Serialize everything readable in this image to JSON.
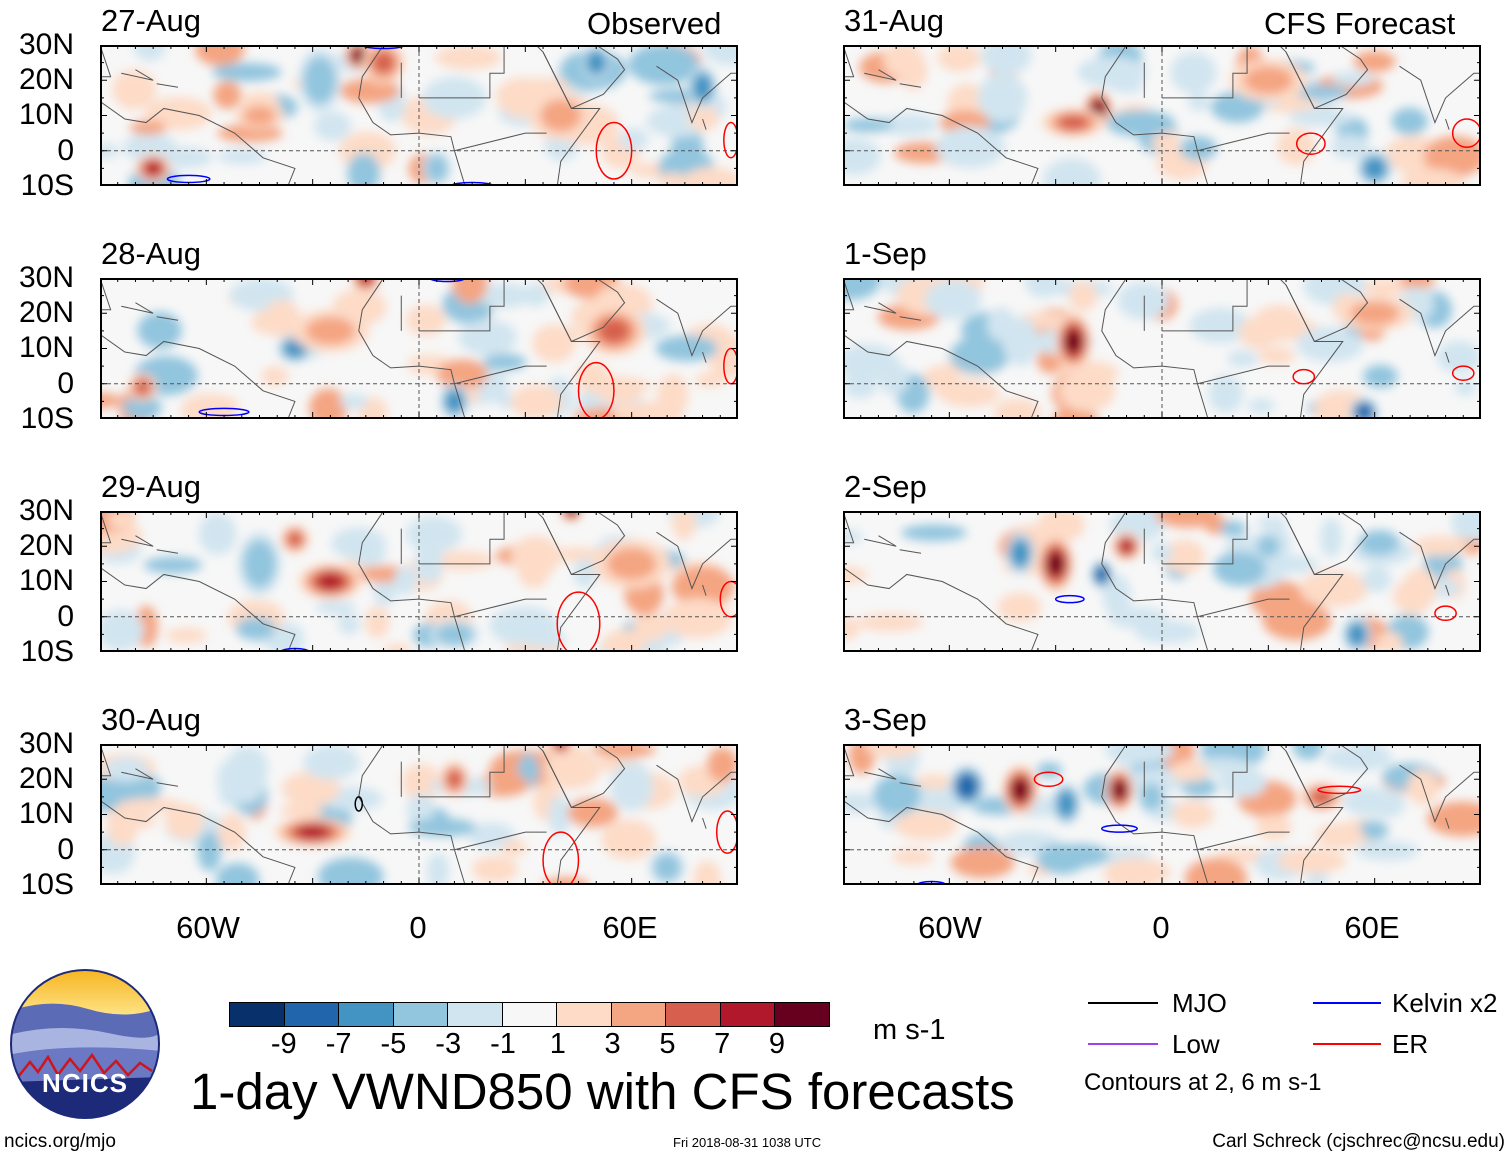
{
  "header": {
    "observed_label": "Observed",
    "forecast_label": "CFS Forecast"
  },
  "lat_labels": [
    "30N",
    "20N",
    "10N",
    "0",
    "10S"
  ],
  "lon_labels": [
    "60W",
    "0",
    "60E"
  ],
  "map_extent": {
    "lon": [
      -90,
      90
    ],
    "lat": [
      -10,
      30
    ]
  },
  "panels": [
    {
      "date": "27-Aug",
      "type": "observed",
      "features": [
        [
          -75,
          -5,
          7,
          4,
          3
        ],
        [
          -17,
          27,
          9,
          3,
          3
        ],
        [
          -10,
          25,
          5,
          5,
          5
        ],
        [
          -28,
          20,
          -5,
          5,
          8
        ],
        [
          10,
          15,
          -3,
          8,
          5
        ],
        [
          5,
          -5,
          -5,
          3,
          4
        ],
        [
          50,
          25,
          -7,
          3,
          4
        ],
        [
          80,
          18,
          -7,
          3,
          5
        ],
        [
          -45,
          10,
          3,
          6,
          3
        ],
        [
          40,
          10,
          3,
          8,
          6
        ]
      ],
      "contours": [
        [
          "ER",
          55,
          0,
          5,
          8
        ],
        [
          "ER",
          88,
          3,
          2,
          5
        ],
        [
          "Kelvin",
          -65,
          -8,
          6,
          1
        ],
        [
          "Kelvin",
          15,
          -10,
          6,
          1
        ],
        [
          "Kelvin",
          -10,
          30,
          6,
          1
        ]
      ]
    },
    {
      "date": "28-Aug",
      "type": "observed",
      "features": [
        [
          -35,
          10,
          -7,
          4,
          3
        ],
        [
          -15,
          30,
          7,
          3,
          3
        ],
        [
          10,
          -5,
          -7,
          3,
          4
        ],
        [
          55,
          15,
          5,
          8,
          6
        ],
        [
          -25,
          15,
          3,
          10,
          5
        ],
        [
          -78,
          -1,
          5,
          3,
          3
        ]
      ],
      "contours": [
        [
          "ER",
          50,
          -2,
          5,
          8
        ],
        [
          "ER",
          88,
          5,
          2,
          5
        ],
        [
          "Kelvin",
          -55,
          -8,
          7,
          1
        ],
        [
          "Kelvin",
          8,
          30,
          5,
          1
        ]
      ]
    },
    {
      "date": "29-Aug",
      "type": "observed",
      "features": [
        [
          -25,
          10,
          7,
          8,
          4
        ],
        [
          -45,
          15,
          -5,
          5,
          8
        ],
        [
          43,
          30,
          7,
          2,
          2
        ],
        [
          60,
          15,
          3,
          10,
          6
        ],
        [
          -35,
          22,
          5,
          3,
          3
        ],
        [
          10,
          -5,
          -5,
          6,
          3
        ]
      ],
      "contours": [
        [
          "ER",
          45,
          -2,
          6,
          9
        ],
        [
          "ER",
          88,
          5,
          3,
          5
        ],
        [
          "Kelvin",
          -35,
          -10,
          4,
          1
        ]
      ]
    },
    {
      "date": "30-Aug",
      "type": "observed",
      "features": [
        [
          -30,
          5,
          7,
          10,
          3
        ],
        [
          -50,
          20,
          -3,
          6,
          6
        ],
        [
          10,
          20,
          5,
          3,
          4
        ],
        [
          40,
          30,
          7,
          2,
          2
        ],
        [
          70,
          -5,
          -5,
          4,
          4
        ],
        [
          60,
          18,
          -3,
          5,
          6
        ]
      ],
      "contours": [
        [
          "ER",
          40,
          -3,
          5,
          8
        ],
        [
          "ER",
          87,
          5,
          3,
          6
        ],
        [
          "MJO",
          -17,
          13,
          1,
          2
        ]
      ]
    },
    {
      "date": "31-Aug",
      "type": "forecast",
      "features": [
        [
          -18,
          12,
          9,
          3,
          4
        ],
        [
          -25,
          8,
          5,
          8,
          3
        ],
        [
          60,
          -5,
          -7,
          4,
          4
        ],
        [
          -45,
          15,
          -3,
          6,
          6
        ],
        [
          30,
          20,
          3,
          10,
          5
        ]
      ],
      "contours": [
        [
          "ER",
          42,
          2,
          4,
          3
        ],
        [
          "ER",
          86,
          5,
          4,
          4
        ]
      ]
    },
    {
      "date": "1-Sep",
      "type": "forecast",
      "features": [
        [
          -25,
          12,
          9,
          4,
          7
        ],
        [
          -40,
          12,
          -3,
          4,
          6
        ],
        [
          57,
          -8,
          -9,
          3,
          3
        ],
        [
          60,
          20,
          3,
          10,
          4
        ]
      ],
      "contours": [
        [
          "ER",
          40,
          2,
          3,
          2
        ],
        [
          "ER",
          85,
          3,
          3,
          2
        ]
      ]
    },
    {
      "date": "2-Sep",
      "type": "forecast",
      "features": [
        [
          -30,
          15,
          9,
          4,
          7
        ],
        [
          -40,
          18,
          -7,
          3,
          5
        ],
        [
          -17,
          12,
          -9,
          2,
          3
        ],
        [
          -10,
          20,
          7,
          3,
          3
        ],
        [
          55,
          -5,
          -7,
          3,
          4
        ],
        [
          30,
          20,
          -5,
          3,
          3
        ]
      ],
      "contours": [
        [
          "Kelvin",
          -26,
          5,
          4,
          1
        ],
        [
          "ER",
          80,
          1,
          3,
          2
        ]
      ]
    },
    {
      "date": "3-Sep",
      "type": "forecast",
      "features": [
        [
          -55,
          18,
          -9,
          4,
          5
        ],
        [
          -40,
          17,
          9,
          4,
          6
        ],
        [
          -27,
          13,
          -7,
          3,
          5
        ],
        [
          -12,
          17,
          9,
          3,
          5
        ],
        [
          -3,
          15,
          -5,
          3,
          4
        ],
        [
          45,
          15,
          5,
          5,
          3
        ]
      ],
      "contours": [
        [
          "ER",
          -32,
          20,
          4,
          2
        ],
        [
          "ER",
          50,
          17,
          6,
          1
        ],
        [
          "Kelvin",
          -12,
          6,
          5,
          1
        ],
        [
          "Kelvin",
          -65,
          -10,
          4,
          1
        ]
      ]
    }
  ],
  "colorbar": {
    "colors": [
      "#08306b",
      "#2166ac",
      "#4393c3",
      "#92c5de",
      "#d1e5f0",
      "#f7f7f7",
      "#fddbc7",
      "#f4a582",
      "#d6604d",
      "#b2182b",
      "#67001f"
    ],
    "ticks": [
      "-9",
      "-7",
      "-5",
      "-3",
      "-1",
      "1",
      "3",
      "5",
      "7",
      "9"
    ],
    "units": "m s-1"
  },
  "legend": {
    "items": [
      {
        "label": "MJO",
        "color": "#000000"
      },
      {
        "label": "Kelvin x2",
        "color": "#0000ff"
      },
      {
        "label": "Low",
        "color": "#a040f0"
      },
      {
        "label": "ER",
        "color": "#ff0000"
      }
    ],
    "contour_note": "Contours at 2, 6 m s-1"
  },
  "title": "1-day VWND850 with CFS forecasts",
  "logo_text": "NCICS",
  "footer": {
    "url": "ncics.org/mjo",
    "timestamp": "Fri 2018-08-31 1038 UTC",
    "credit": "Carl Schreck (cjschrec@ncsu.edu)"
  }
}
